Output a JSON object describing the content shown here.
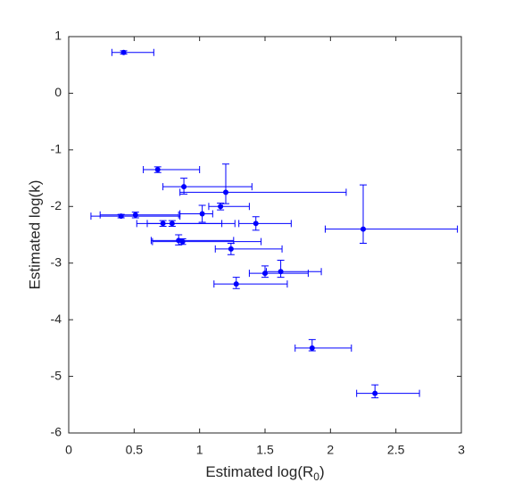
{
  "chart_data": {
    "type": "scatter",
    "x_label": {
      "text": "Estimated log(R",
      "sub": "0",
      "close": ")"
    },
    "y_label": "Estimated log(k)",
    "color": "#0000ff",
    "xlim": [
      0,
      3
    ],
    "xticks": [
      0,
      0.5,
      1,
      1.5,
      2,
      2.5,
      3
    ],
    "ylim": [
      -6,
      1
    ],
    "yticks": [
      -6,
      -5,
      -4,
      -3,
      -2,
      -1,
      0,
      1
    ],
    "x": [
      0.42,
      0.68,
      0.88,
      1.2,
      1.16,
      0.4,
      0.51,
      1.02,
      0.72,
      0.79,
      1.43,
      2.25,
      0.84,
      0.87,
      1.24,
      1.28,
      1.5,
      1.62,
      1.86,
      2.34
    ],
    "y": [
      0.72,
      -1.35,
      -1.65,
      -1.75,
      -2.0,
      -2.17,
      -2.15,
      -2.13,
      -2.3,
      -2.3,
      -2.3,
      -2.4,
      -2.6,
      -2.62,
      -2.75,
      -3.37,
      -3.18,
      -3.15,
      -4.5,
      -5.3
    ],
    "x_low": [
      0.33,
      0.57,
      0.72,
      0.85,
      1.07,
      0.17,
      0.24,
      0.85,
      0.52,
      0.6,
      1.3,
      1.96,
      0.63,
      0.64,
      1.12,
      1.11,
      1.38,
      1.51,
      1.73,
      2.2
    ],
    "x_high": [
      0.65,
      1.0,
      1.4,
      2.12,
      1.38,
      0.85,
      0.84,
      1.1,
      1.17,
      1.27,
      1.7,
      2.97,
      1.26,
      1.47,
      1.63,
      1.67,
      1.83,
      1.93,
      2.16,
      2.68
    ],
    "y_low": [
      0.69,
      -1.4,
      -1.78,
      -1.95,
      -2.06,
      -2.2,
      -2.2,
      -2.28,
      -2.35,
      -2.35,
      -2.42,
      -2.65,
      -2.68,
      -2.67,
      -2.85,
      -3.45,
      -3.25,
      -3.25,
      -4.55,
      -5.38
    ],
    "y_high": [
      0.75,
      -1.3,
      -1.5,
      -1.25,
      -1.94,
      -2.14,
      -2.1,
      -1.98,
      -2.25,
      -2.25,
      -2.18,
      -1.62,
      -2.5,
      -2.57,
      -2.65,
      -3.25,
      -3.05,
      -2.95,
      -4.35,
      -5.15
    ]
  }
}
